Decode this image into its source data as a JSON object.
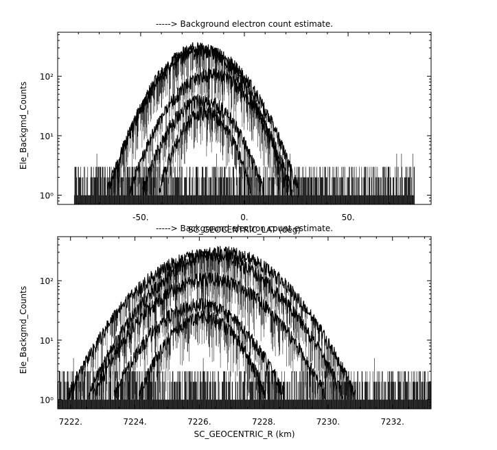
{
  "chart_data": [
    {
      "type": "line",
      "title": "-----> Background electron count estimate.",
      "xlabel": "SC_GEOCENTRIC_LAT (deg)",
      "ylabel": "Ele_Backgmd_Counts",
      "xlim": [
        -90,
        90
      ],
      "ylim": [
        0.7,
        550
      ],
      "yscale": "log",
      "xticks": [
        -50,
        0,
        50
      ],
      "xtick_labels": [
        "-50.",
        "0.",
        "50."
      ],
      "yticks": [
        1,
        10,
        100
      ],
      "ytick_labels": [
        "10⁰",
        "10¹",
        "10²"
      ],
      "grid": false,
      "noise_floor": {
        "x_range": [
          -82,
          82
        ],
        "levels": [
          1,
          2,
          3
        ],
        "spikes_to": 5
      },
      "series": [
        {
          "center": -22,
          "width": 13,
          "peak": 300
        },
        {
          "center": -20,
          "width": 14,
          "peak": 270
        },
        {
          "center": -16,
          "width": 13,
          "peak": 110
        },
        {
          "center": -20,
          "width": 11,
          "peak": 40
        },
        {
          "center": -19,
          "width": 9,
          "peak": 25
        }
      ]
    },
    {
      "type": "line",
      "title": "-----> Background electron count estimate.",
      "xlabel": "SC_GEOCENTRIC_R (km)",
      "ylabel": "Ele_Backgmd_Counts",
      "xlim": [
        7221.6,
        7233.2
      ],
      "ylim": [
        0.7,
        550
      ],
      "yscale": "log",
      "xticks": [
        7222,
        7224,
        7226,
        7228,
        7230,
        7232
      ],
      "xtick_labels": [
        "7222.",
        "7224.",
        "7226.",
        "7228.",
        "7230.",
        "7232."
      ],
      "yticks": [
        1,
        10,
        100
      ],
      "ytick_labels": [
        "10⁰",
        "10¹",
        "10²"
      ],
      "grid": false,
      "noise_floor": {
        "x_range": [
          7221.6,
          7233.2
        ],
        "levels": [
          1,
          2,
          3
        ],
        "spikes_to": 5
      },
      "series": [
        {
          "center": 7226.7,
          "width": 1.25,
          "peak": 300
        },
        {
          "center": 7226.2,
          "width": 1.3,
          "peak": 270
        },
        {
          "center": 7226.3,
          "width": 1.2,
          "peak": 110
        },
        {
          "center": 7226.0,
          "width": 1.0,
          "peak": 40
        },
        {
          "center": 7226.1,
          "width": 0.8,
          "peak": 25
        }
      ]
    }
  ]
}
